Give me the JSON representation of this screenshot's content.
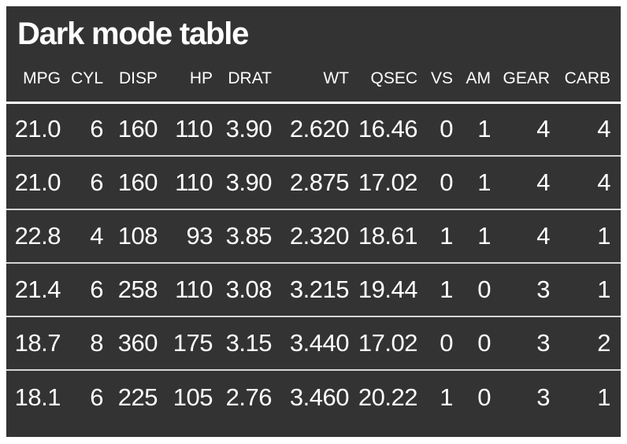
{
  "chart_data": {
    "type": "table",
    "title": "Dark mode table",
    "columns": [
      "MPG",
      "CYL",
      "DISP",
      "HP",
      "DRAT",
      "WT",
      "QSEC",
      "VS",
      "AM",
      "GEAR",
      "CARB"
    ],
    "rows": [
      [
        "21.0",
        "6",
        "160",
        "110",
        "3.90",
        "2.620",
        "16.46",
        "0",
        "1",
        "4",
        "4"
      ],
      [
        "21.0",
        "6",
        "160",
        "110",
        "3.90",
        "2.875",
        "17.02",
        "0",
        "1",
        "4",
        "4"
      ],
      [
        "22.8",
        "4",
        "108",
        "93",
        "3.85",
        "2.320",
        "18.61",
        "1",
        "1",
        "4",
        "1"
      ],
      [
        "21.4",
        "6",
        "258",
        "110",
        "3.08",
        "3.215",
        "19.44",
        "1",
        "0",
        "3",
        "1"
      ],
      [
        "18.7",
        "8",
        "360",
        "175",
        "3.15",
        "3.440",
        "17.02",
        "0",
        "0",
        "3",
        "2"
      ],
      [
        "18.1",
        "6",
        "225",
        "105",
        "2.76",
        "3.460",
        "20.22",
        "1",
        "0",
        "3",
        "1"
      ]
    ],
    "layout": {
      "alignment": "right",
      "grid": "horizontal-dividers-only"
    }
  },
  "colors": {
    "page_background": "#ffffff",
    "table_background": "#333333",
    "text": "#ffffff",
    "header_divider": "#ffffff",
    "row_divider": "#d5d5d5"
  }
}
